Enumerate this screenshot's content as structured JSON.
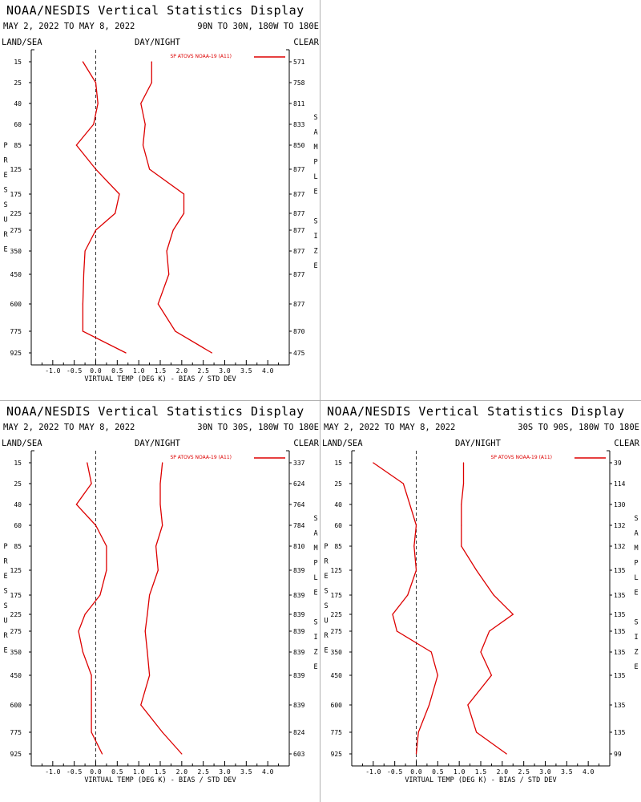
{
  "colors": {
    "series": "#dd0000",
    "axis": "#000000",
    "zero_line": "#000000"
  },
  "panels": [
    {
      "title": "NOAA/NESDIS Vertical Statistics Display",
      "dates": "MAY 2, 2022 TO MAY 8, 2022",
      "region": "90N TO 30N, 180W TO 180E",
      "label_left": "LAND/SEA",
      "label_mid": "DAY/NIGHT",
      "label_right": "CLEAR",
      "left_axis_word": "PRESSURE",
      "right_axis_words": [
        "SAMPLE",
        "SIZE"
      ],
      "legend": "SP ATOVS NOAA-19 (A11)",
      "xlabel": "VIRTUAL TEMP (DEG K) - BIAS / STD DEV",
      "sample_sizes": [
        "571",
        "758",
        "811",
        "833",
        "850",
        "877",
        "877",
        "877",
        "877",
        "877",
        "877",
        "877",
        "870",
        "475"
      ]
    },
    {
      "title": "NOAA/NESDIS Vertical Statistics Display",
      "dates": "MAY 2, 2022 TO MAY 8, 2022",
      "region": "30N TO 30S, 180W TO 180E",
      "label_left": "LAND/SEA",
      "label_mid": "DAY/NIGHT",
      "label_right": "CLEAR",
      "left_axis_word": "PRESSURE",
      "right_axis_words": [
        "SAMPLE",
        "SIZE"
      ],
      "legend": "SP ATOVS NOAA-19 (A11)",
      "xlabel": "VIRTUAL TEMP (DEG K) - BIAS / STD DEV",
      "sample_sizes": [
        "337",
        "624",
        "764",
        "784",
        "810",
        "839",
        "839",
        "839",
        "839",
        "839",
        "839",
        "839",
        "824",
        "603"
      ]
    },
    {
      "title": "NOAA/NESDIS Vertical Statistics Display",
      "dates": "MAY 2, 2022 TO MAY 8, 2022",
      "region": "30S TO 90S, 180W TO 180E",
      "label_left": "LAND/SEA",
      "label_mid": "DAY/NIGHT",
      "label_right": "CLEAR",
      "left_axis_word": "PRESSURE",
      "right_axis_words": [
        "SAMPLE",
        "SIZE"
      ],
      "legend": "SP ATOVS NOAA-19 (A11)",
      "xlabel": "VIRTUAL TEMP (DEG K) - BIAS / STD DEV",
      "sample_sizes": [
        "39",
        "114",
        "130",
        "132",
        "132",
        "135",
        "135",
        "135",
        "135",
        "135",
        "135",
        "135",
        "135",
        "99"
      ]
    }
  ],
  "chart_data": [
    {
      "type": "line",
      "pressure_levels": [
        15,
        25,
        40,
        60,
        85,
        125,
        175,
        225,
        275,
        350,
        450,
        600,
        775,
        925
      ],
      "x_ticks": [
        "-1.0",
        "-0.5",
        "0.0",
        "0.5",
        "1.0",
        "1.5",
        "2.0",
        "2.5",
        "3.0",
        "3.5",
        "4.0"
      ],
      "xlim": [
        -1.5,
        4.5
      ],
      "series": [
        {
          "values": [
            -0.3,
            0.0,
            0.05,
            -0.05,
            -0.45,
            0.0,
            0.55,
            0.45,
            0.0,
            -0.25,
            -0.28,
            -0.3,
            -0.3,
            0.7
          ]
        },
        {
          "values": [
            1.3,
            1.3,
            1.05,
            1.15,
            1.1,
            1.25,
            2.05,
            2.05,
            1.8,
            1.65,
            1.7,
            1.45,
            1.85,
            2.7
          ]
        }
      ]
    },
    {
      "type": "line",
      "pressure_levels": [
        15,
        25,
        40,
        60,
        85,
        125,
        175,
        225,
        275,
        350,
        450,
        600,
        775,
        925
      ],
      "x_ticks": [
        "-1.0",
        "-0.5",
        "0.0",
        "0.5",
        "1.0",
        "1.5",
        "2.0",
        "2.5",
        "3.0",
        "3.5",
        "4.0"
      ],
      "xlim": [
        -1.5,
        4.5
      ],
      "series": [
        {
          "values": [
            -0.2,
            -0.1,
            -0.45,
            0.0,
            0.25,
            0.25,
            0.1,
            -0.25,
            -0.4,
            -0.3,
            -0.1,
            -0.1,
            -0.1,
            0.15
          ]
        },
        {
          "values": [
            1.55,
            1.5,
            1.5,
            1.55,
            1.4,
            1.45,
            1.25,
            1.2,
            1.15,
            1.2,
            1.25,
            1.05,
            1.55,
            2.0
          ]
        }
      ]
    },
    {
      "type": "line",
      "pressure_levels": [
        15,
        25,
        40,
        60,
        85,
        125,
        175,
        225,
        275,
        350,
        450,
        600,
        775,
        925
      ],
      "x_ticks": [
        "-1.0",
        "-0.5",
        "0.0",
        "0.5",
        "1.0",
        "1.5",
        "2.0",
        "2.5",
        "3.0",
        "3.5",
        "4.0"
      ],
      "xlim": [
        -1.5,
        4.5
      ],
      "series": [
        {
          "values": [
            -1.0,
            -0.3,
            -0.15,
            0.0,
            -0.05,
            0.0,
            -0.2,
            -0.55,
            -0.45,
            0.35,
            0.5,
            0.3,
            0.05,
            0.0
          ]
        },
        {
          "values": [
            1.1,
            1.1,
            1.05,
            1.05,
            1.05,
            1.4,
            1.8,
            2.25,
            1.7,
            1.5,
            1.75,
            1.2,
            1.4,
            2.1
          ]
        }
      ]
    }
  ]
}
